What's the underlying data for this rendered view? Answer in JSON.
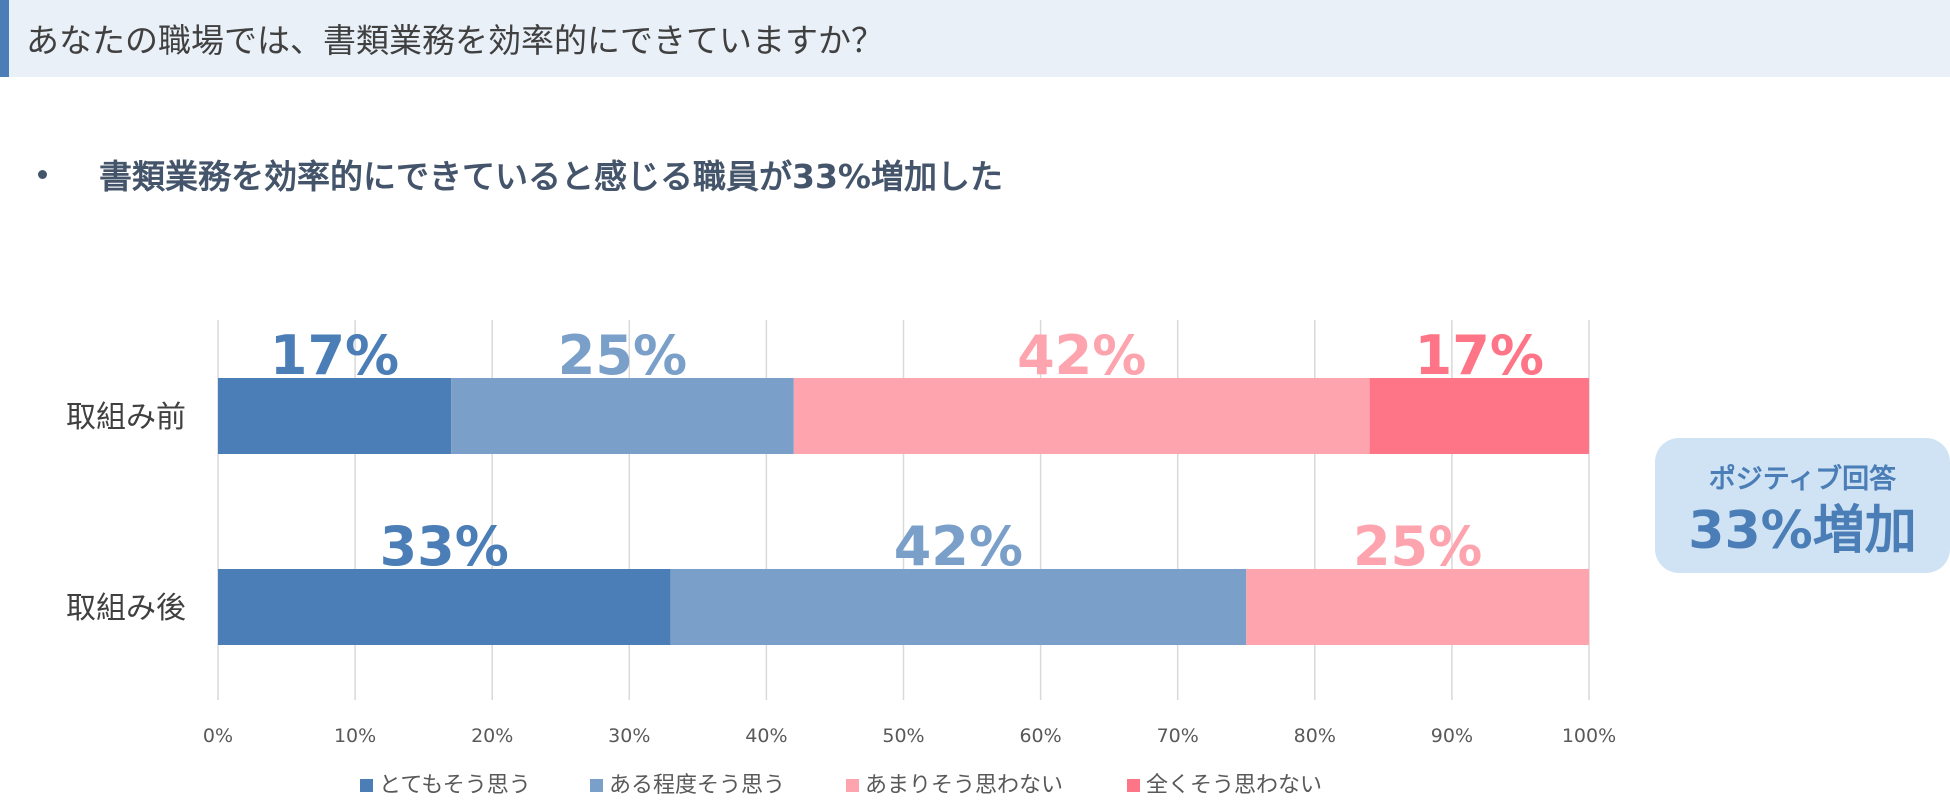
{
  "header": {
    "title": "あなたの職場では、書類業務を効率的にできていますか？"
  },
  "bullet": {
    "text": "書類業務を効率的にできていると感じる職員が33%増加した"
  },
  "callout": {
    "line1": "ポジティブ回答",
    "line2": "33%増加"
  },
  "colors": {
    "accent": "#4b7eb6",
    "header_bg": "#e9f0f8",
    "callout_bg": "#cfe3f4",
    "gridline": "#d9d9d9",
    "label_text": "#404040"
  },
  "chart_data": {
    "type": "bar",
    "orientation": "horizontal",
    "stacked": true,
    "percent_stacked": true,
    "categories": [
      "取組み前",
      "取組み後"
    ],
    "series": [
      {
        "name": "とてもそう思う",
        "color": "#4b7eb6",
        "values": [
          17,
          33
        ],
        "labels": [
          "17%",
          "33%"
        ]
      },
      {
        "name": "ある程度そう思う",
        "color": "#7aa0c9",
        "values": [
          25,
          42
        ],
        "labels": [
          "25%",
          "42%"
        ]
      },
      {
        "name": "あまりそう思わない",
        "color": "#fda4ae",
        "values": [
          42,
          25
        ],
        "labels": [
          "42%",
          "25%"
        ]
      },
      {
        "name": "全くそう思わない",
        "color": "#fd7586",
        "values": [
          17,
          0
        ],
        "labels": [
          "17%",
          ""
        ]
      }
    ],
    "xlim": [
      0,
      100
    ],
    "xticks": [
      0,
      10,
      20,
      30,
      40,
      50,
      60,
      70,
      80,
      90,
      100
    ],
    "xtick_labels": [
      "0%",
      "10%",
      "20%",
      "30%",
      "40%",
      "50%",
      "60%",
      "70%",
      "80%",
      "90%",
      "100%"
    ],
    "grid": true,
    "legend_position": "bottom"
  }
}
